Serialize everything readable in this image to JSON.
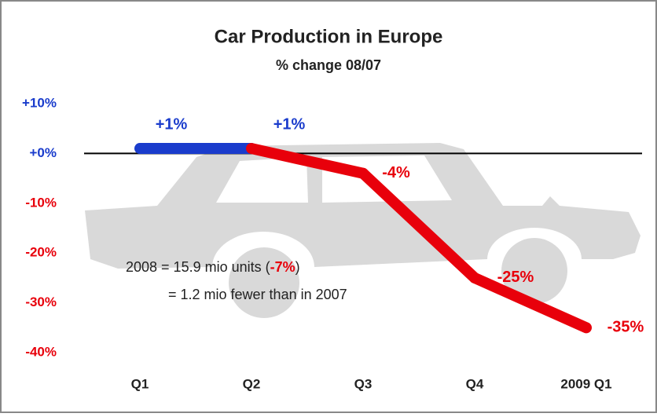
{
  "chart_data": {
    "type": "line",
    "title": "Car Production in Europe",
    "subtitle": "% change 08/07",
    "categories": [
      "Q1",
      "Q2",
      "Q3",
      "Q4",
      "2009 Q1"
    ],
    "values": [
      1,
      1,
      -4,
      -25,
      -35
    ],
    "value_labels": [
      "+1%",
      "+1%",
      "-4%",
      "-25%",
      "-35%"
    ],
    "segment_colors": [
      "#1a3ccc",
      "#e8000b",
      "#e8000b",
      "#e8000b"
    ],
    "positive_color": "#1a3ccc",
    "negative_color": "#e8000b",
    "ylim": [
      -40,
      10
    ],
    "yticks": [
      {
        "value": 10,
        "label": "+10%"
      },
      {
        "value": 0,
        "label": "+0%"
      },
      {
        "value": -10,
        "label": "-10%"
      },
      {
        "value": -20,
        "label": "-20%"
      },
      {
        "value": -30,
        "label": "-30%"
      },
      {
        "value": -40,
        "label": "-40%"
      }
    ],
    "annotation": {
      "line1": [
        "2008 = 15.9 mio units (",
        "-7%",
        ")"
      ],
      "line2": "= 1.2 mio fewer than in 2007"
    }
  }
}
